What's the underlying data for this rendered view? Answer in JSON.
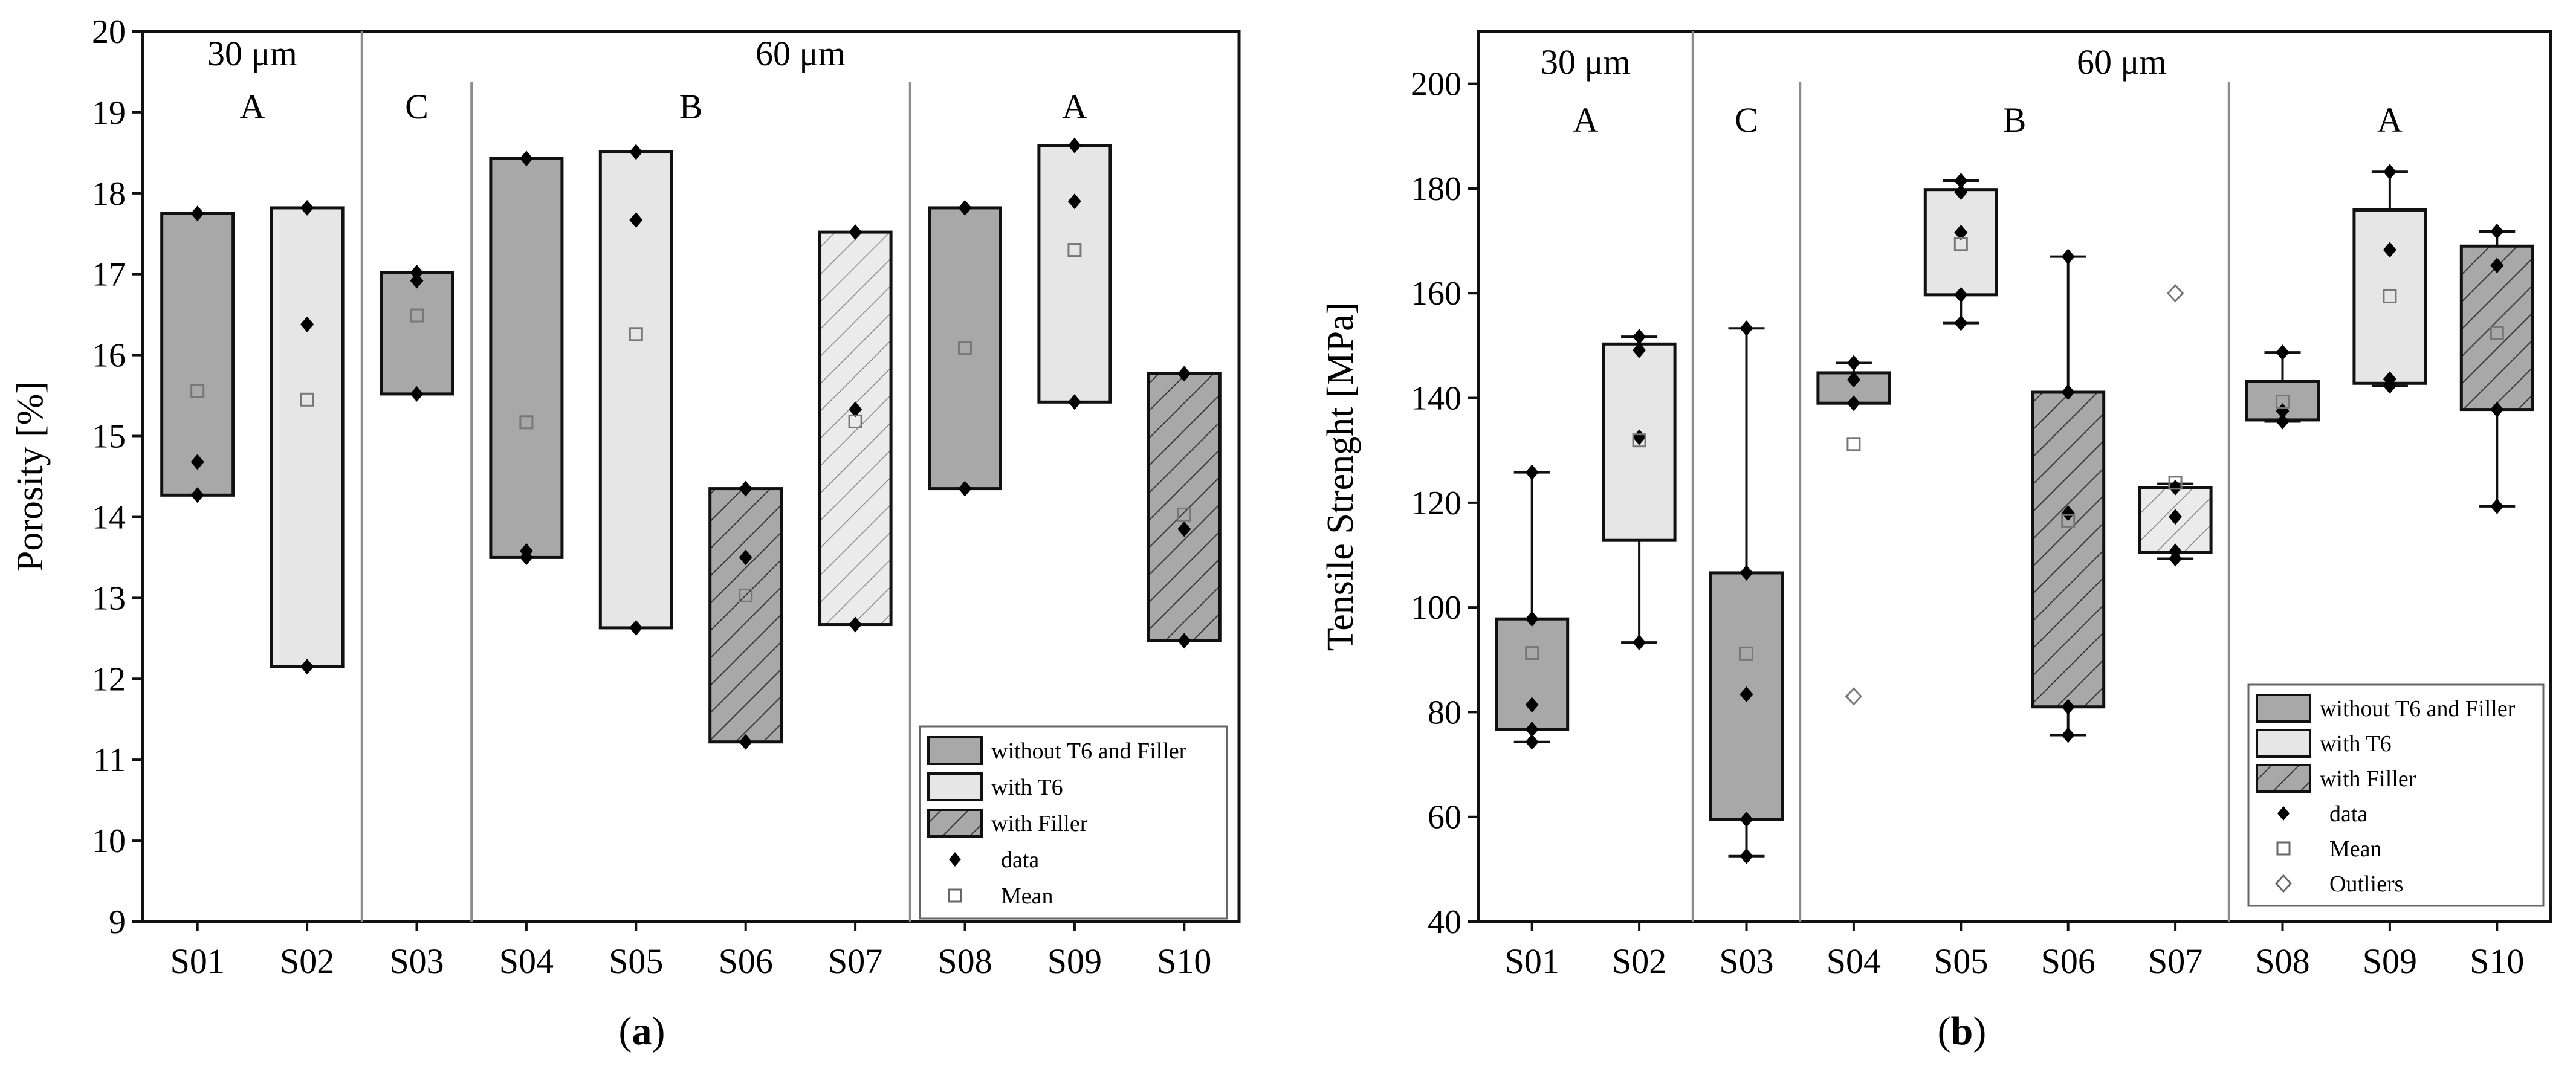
{
  "chart_data": [
    {
      "type": "box",
      "panel_label": "a",
      "ylabel": "Porosity [%]",
      "ylim": [
        9,
        20
      ],
      "yticks": [
        9,
        10,
        11,
        12,
        13,
        14,
        15,
        16,
        17,
        18,
        19,
        20
      ],
      "categories": [
        "S01",
        "S02",
        "S03",
        "S04",
        "S05",
        "S06",
        "S07",
        "S08",
        "S09",
        "S10"
      ],
      "group_labels": [
        {
          "text": "30 μm",
          "from": 0,
          "to": 1
        },
        {
          "text": "60 μm",
          "from": 2,
          "to": 9
        }
      ],
      "class_labels": [
        {
          "text": "A",
          "from": 0,
          "to": 1
        },
        {
          "text": "C",
          "from": 2,
          "to": 2
        },
        {
          "text": "B",
          "from": 3,
          "to": 6
        },
        {
          "text": "A",
          "from": 7,
          "to": 9
        }
      ],
      "separators_after": [
        1,
        2,
        6
      ],
      "legend": {
        "position": "bottom-right",
        "items": [
          {
            "kind": "box",
            "fill": "without",
            "label": "without T6 and Filler"
          },
          {
            "kind": "box",
            "fill": "t6",
            "label": "with T6"
          },
          {
            "kind": "box",
            "fill": "filler",
            "label": "with Filler"
          },
          {
            "kind": "data",
            "label": "data"
          },
          {
            "kind": "mean",
            "label": "Mean"
          }
        ]
      },
      "boxes": [
        {
          "name": "S01",
          "fill": "without",
          "q1": 14.27,
          "q3": 17.75,
          "min": 14.27,
          "max": 17.75,
          "mean": 15.56,
          "data": [
            17.75,
            14.68,
            14.27
          ]
        },
        {
          "name": "S02",
          "fill": "t6",
          "q1": 12.15,
          "q3": 17.82,
          "min": 12.15,
          "max": 17.82,
          "mean": 15.45,
          "data": [
            17.82,
            16.38,
            12.15
          ]
        },
        {
          "name": "S03",
          "fill": "without",
          "q1": 15.52,
          "q3": 17.02,
          "min": 15.52,
          "max": 17.02,
          "mean": 16.49,
          "data": [
            17.02,
            16.92,
            15.52
          ]
        },
        {
          "name": "S04",
          "fill": "without",
          "q1": 13.5,
          "q3": 18.43,
          "min": 13.5,
          "max": 18.43,
          "mean": 15.17,
          "data": [
            18.43,
            13.58,
            13.5
          ]
        },
        {
          "name": "S05",
          "fill": "t6",
          "q1": 12.63,
          "q3": 18.51,
          "min": 12.63,
          "max": 18.51,
          "mean": 16.26,
          "data": [
            18.51,
            17.67,
            12.63
          ]
        },
        {
          "name": "S06",
          "fill": "filler",
          "q1": 11.22,
          "q3": 14.35,
          "min": 11.22,
          "max": 14.35,
          "mean": 13.03,
          "data": [
            14.35,
            13.5,
            11.22
          ]
        },
        {
          "name": "S07",
          "fill": "t6filler",
          "q1": 12.67,
          "q3": 17.52,
          "min": 12.67,
          "max": 17.52,
          "mean": 15.18,
          "data": [
            17.52,
            15.33,
            12.67
          ]
        },
        {
          "name": "S08",
          "fill": "without",
          "q1": 14.35,
          "q3": 17.82,
          "min": 14.35,
          "max": 17.82,
          "mean": 16.09,
          "data": [
            17.82,
            14.35
          ]
        },
        {
          "name": "S09",
          "fill": "t6",
          "q1": 15.42,
          "q3": 18.59,
          "min": 15.42,
          "max": 18.59,
          "mean": 17.3,
          "data": [
            18.59,
            17.9,
            15.42
          ]
        },
        {
          "name": "S10",
          "fill": "filler",
          "q1": 12.47,
          "q3": 15.77,
          "min": 12.47,
          "max": 15.77,
          "mean": 14.03,
          "data": [
            15.77,
            13.85,
            12.47
          ]
        }
      ]
    },
    {
      "type": "box",
      "panel_label": "b",
      "ylabel": "Tensile Strenght [MPa]",
      "ylim": [
        40,
        210
      ],
      "yticks": [
        40,
        60,
        80,
        100,
        120,
        140,
        160,
        180,
        200
      ],
      "categories": [
        "S01",
        "S02",
        "S03",
        "S04",
        "S05",
        "S06",
        "S07",
        "S08",
        "S09",
        "S10"
      ],
      "group_labels": [
        {
          "text": "30 μm",
          "from": 0,
          "to": 1
        },
        {
          "text": "60 μm",
          "from": 2,
          "to": 9
        }
      ],
      "class_labels": [
        {
          "text": "A",
          "from": 0,
          "to": 1
        },
        {
          "text": "C",
          "from": 2,
          "to": 2
        },
        {
          "text": "B",
          "from": 3,
          "to": 6
        },
        {
          "text": "A",
          "from": 7,
          "to": 9
        }
      ],
      "separators_after": [
        1,
        2,
        6
      ],
      "legend": {
        "position": "bottom-right",
        "items": [
          {
            "kind": "box",
            "fill": "without",
            "label": "without T6 and Filler"
          },
          {
            "kind": "box",
            "fill": "t6",
            "label": "with T6"
          },
          {
            "kind": "box",
            "fill": "filler",
            "label": "with Filler"
          },
          {
            "kind": "data",
            "label": "data"
          },
          {
            "kind": "mean",
            "label": "Mean"
          },
          {
            "kind": "outlier",
            "label": "Outliers"
          }
        ]
      },
      "boxes": [
        {
          "name": "S01",
          "fill": "without",
          "q1": 76.7,
          "q3": 97.8,
          "min": 74.3,
          "max": 125.8,
          "mean": 91.3,
          "data": [
            125.8,
            97.8,
            81.4,
            76.7,
            74.3
          ],
          "outliers": []
        },
        {
          "name": "S02",
          "fill": "t6",
          "q1": 112.8,
          "q3": 150.3,
          "min": 93.3,
          "max": 151.7,
          "mean": 131.9,
          "data": [
            151.7,
            149.1,
            132.5,
            93.3
          ],
          "outliers": []
        },
        {
          "name": "S03",
          "fill": "without",
          "q1": 59.5,
          "q3": 106.6,
          "min": 52.5,
          "max": 153.3,
          "mean": 91.2,
          "data": [
            153.3,
            106.6,
            83.4,
            59.5,
            52.5
          ],
          "outliers": []
        },
        {
          "name": "S04",
          "fill": "without",
          "q1": 139.0,
          "q3": 144.8,
          "min": 139.0,
          "max": 146.7,
          "mean": 131.2,
          "data": [
            146.7,
            143.5,
            139.0
          ],
          "outliers": [
            83.0
          ]
        },
        {
          "name": "S05",
          "fill": "t6",
          "q1": 159.7,
          "q3": 179.8,
          "min": 154.3,
          "max": 181.5,
          "mean": 169.4,
          "data": [
            181.5,
            179.3,
            171.6,
            159.7,
            154.3
          ],
          "outliers": []
        },
        {
          "name": "S06",
          "fill": "filler",
          "q1": 81.0,
          "q3": 141.1,
          "min": 75.6,
          "max": 167.0,
          "mean": 116.5,
          "data": [
            167.0,
            141.1,
            118.0,
            81.0,
            75.6
          ],
          "outliers": []
        },
        {
          "name": "S07",
          "fill": "t6filler",
          "q1": 110.5,
          "q3": 122.9,
          "min": 109.3,
          "max": 123.6,
          "mean": 123.8,
          "data": [
            122.9,
            117.3,
            110.7,
            109.3
          ],
          "outliers": [
            160.0
          ]
        },
        {
          "name": "S08",
          "fill": "without",
          "q1": 135.8,
          "q3": 143.2,
          "min": 135.5,
          "max": 148.7,
          "mean": 139.3,
          "data": [
            148.7,
            137.5,
            135.5
          ],
          "outliers": []
        },
        {
          "name": "S09",
          "fill": "t6",
          "q1": 142.8,
          "q3": 175.9,
          "min": 142.3,
          "max": 183.2,
          "mean": 159.4,
          "data": [
            183.2,
            168.3,
            143.6,
            142.3
          ],
          "outliers": []
        },
        {
          "name": "S10",
          "fill": "filler",
          "q1": 137.8,
          "q3": 169.0,
          "min": 119.3,
          "max": 171.8,
          "mean": 152.4,
          "data": [
            171.8,
            165.3,
            137.8,
            119.3
          ],
          "outliers": []
        }
      ]
    }
  ]
}
